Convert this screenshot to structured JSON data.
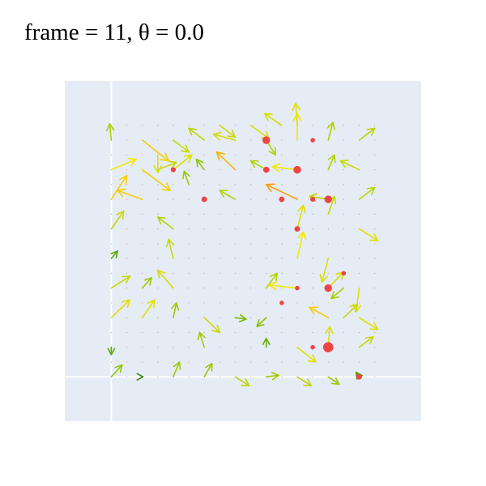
{
  "title": "frame = 11, θ = 0.0",
  "colors": {
    "plot_bg": "#e5ecf6",
    "grid": "#ffffff",
    "dot": "#ef4444",
    "arrow_low": "#2e7d0b",
    "arrow_mid": "#8bc400",
    "arrow_high": "#f2e800",
    "arrow_max": "#ff9a00"
  },
  "chart_data": {
    "type": "quiver",
    "title": "frame = 11, θ = 0.0",
    "xlim": [
      -1.5,
      10.0
    ],
    "ylim": [
      -1.5,
      10.0
    ],
    "grid": true,
    "gridlines": {
      "x": [
        0
      ],
      "y": [
        0
      ]
    },
    "grid_range": {
      "min": 0,
      "max": 8.5,
      "step": 0.5
    },
    "arrows": [
      {
        "x": 0.0,
        "y": 0.0,
        "u": 0.35,
        "v": 0.4,
        "mag": 0.45
      },
      {
        "x": 1.0,
        "y": 0.0,
        "u": 0.02,
        "v": 0.0,
        "mag": 0.05
      },
      {
        "x": 2.0,
        "y": 0.0,
        "u": 0.2,
        "v": 0.5,
        "mag": 0.5
      },
      {
        "x": 3.0,
        "y": 0.0,
        "u": 0.25,
        "v": 0.45,
        "mag": 0.5
      },
      {
        "x": 4.0,
        "y": 0.0,
        "u": 0.45,
        "v": -0.3,
        "mag": 0.65
      },
      {
        "x": 5.0,
        "y": 0.0,
        "u": 0.4,
        "v": 0.05,
        "mag": 0.5
      },
      {
        "x": 6.0,
        "y": 0.0,
        "u": 0.45,
        "v": -0.3,
        "mag": 0.65
      },
      {
        "x": 7.0,
        "y": 0.0,
        "u": 0.35,
        "v": -0.25,
        "mag": 0.5
      },
      {
        "x": 8.0,
        "y": 0.0,
        "u": -0.1,
        "v": 0.15,
        "mag": 0.2
      },
      {
        "x": 0.0,
        "y": 1.0,
        "u": 0.0,
        "v": -0.25,
        "mag": 0.25
      },
      {
        "x": 3.0,
        "y": 1.0,
        "u": -0.15,
        "v": 0.5,
        "mag": 0.5
      },
      {
        "x": 5.0,
        "y": 1.0,
        "u": 0.0,
        "v": 0.3,
        "mag": 0.3
      },
      {
        "x": 6.0,
        "y": 1.0,
        "u": 0.6,
        "v": -0.5,
        "mag": 0.8
      },
      {
        "x": 7.0,
        "y": 1.0,
        "u": 0.05,
        "v": 0.7,
        "mag": 0.8
      },
      {
        "x": 8.0,
        "y": 1.0,
        "u": 0.45,
        "v": 0.35,
        "mag": 0.7
      },
      {
        "x": 0.0,
        "y": 2.0,
        "u": 0.6,
        "v": 0.6,
        "mag": 0.8
      },
      {
        "x": 1.0,
        "y": 2.0,
        "u": 0.4,
        "v": 0.6,
        "mag": 0.8
      },
      {
        "x": 2.0,
        "y": 2.0,
        "u": 0.1,
        "v": 0.5,
        "mag": 0.5
      },
      {
        "x": 3.0,
        "y": 2.0,
        "u": 0.5,
        "v": -0.5,
        "mag": 0.7
      },
      {
        "x": 4.0,
        "y": 2.0,
        "u": 0.35,
        "v": -0.05,
        "mag": 0.35
      },
      {
        "x": 5.0,
        "y": 2.0,
        "u": -0.3,
        "v": -0.3,
        "mag": 0.4
      },
      {
        "x": 7.0,
        "y": 2.0,
        "u": -0.6,
        "v": 0.35,
        "mag": 1.0
      },
      {
        "x": 8.0,
        "y": 2.0,
        "u": 0.6,
        "v": -0.4,
        "mag": 0.8
      },
      {
        "x": 0.0,
        "y": 3.0,
        "u": 0.6,
        "v": 0.4,
        "mag": 0.7
      },
      {
        "x": 1.0,
        "y": 3.0,
        "u": 0.3,
        "v": 0.35,
        "mag": 0.5
      },
      {
        "x": 2.0,
        "y": 3.0,
        "u": -0.5,
        "v": 0.6,
        "mag": 0.75
      },
      {
        "x": 5.0,
        "y": 3.0,
        "u": 0.35,
        "v": 0.5,
        "mag": 0.6
      },
      {
        "x": 6.0,
        "y": 3.0,
        "u": -0.9,
        "v": 0.1,
        "mag": 0.9
      },
      {
        "x": 7.0,
        "y": 3.0,
        "u": 0.5,
        "v": 0.55,
        "mag": 0.75
      },
      {
        "x": 8.0,
        "y": 3.0,
        "u": -0.1,
        "v": -0.8,
        "mag": 0.8
      },
      {
        "x": 0.0,
        "y": 4.0,
        "u": 0.2,
        "v": 0.25,
        "mag": 0.25
      },
      {
        "x": 2.0,
        "y": 4.0,
        "u": -0.15,
        "v": 0.65,
        "mag": 0.7
      },
      {
        "x": 6.0,
        "y": 4.0,
        "u": 0.2,
        "v": 0.9,
        "mag": 0.9
      },
      {
        "x": 7.0,
        "y": 4.0,
        "u": -0.2,
        "v": -0.8,
        "mag": 0.8
      },
      {
        "x": 0.0,
        "y": 5.0,
        "u": 0.4,
        "v": 0.6,
        "mag": 0.7
      },
      {
        "x": 2.0,
        "y": 5.0,
        "u": -0.5,
        "v": 0.4,
        "mag": 0.6
      },
      {
        "x": 6.0,
        "y": 5.0,
        "u": 0.2,
        "v": 0.8,
        "mag": 0.8
      },
      {
        "x": 8.0,
        "y": 5.0,
        "u": 0.6,
        "v": -0.4,
        "mag": 0.8
      },
      {
        "x": 0.0,
        "y": 6.0,
        "u": 0.5,
        "v": 0.8,
        "mag": 1.0
      },
      {
        "x": 1.0,
        "y": 6.0,
        "u": -0.8,
        "v": 0.3,
        "mag": 1.0
      },
      {
        "x": 4.0,
        "y": 6.0,
        "u": -0.5,
        "v": 0.3,
        "mag": 0.6
      },
      {
        "x": 6.0,
        "y": 6.0,
        "u": -1.0,
        "v": 0.5,
        "mag": 1.2
      },
      {
        "x": 7.0,
        "y": 6.0,
        "u": -0.6,
        "v": 0.1,
        "mag": 0.65
      },
      {
        "x": 8.0,
        "y": 6.0,
        "u": 0.5,
        "v": 0.4,
        "mag": 0.65
      },
      {
        "x": 0.0,
        "y": 7.0,
        "u": 0.8,
        "v": 0.35,
        "mag": 0.9
      },
      {
        "x": 1.0,
        "y": 7.0,
        "u": 0.9,
        "v": -0.7,
        "mag": 1.0
      },
      {
        "x": 2.0,
        "y": 7.0,
        "u": 0.6,
        "v": 0.5,
        "mag": 0.8
      },
      {
        "x": 3.0,
        "y": 7.0,
        "u": -0.25,
        "v": 0.35,
        "mag": 0.45
      },
      {
        "x": 4.0,
        "y": 7.0,
        "u": -0.6,
        "v": 0.6,
        "mag": 1.1
      },
      {
        "x": 5.0,
        "y": 7.0,
        "u": -0.5,
        "v": 0.3,
        "mag": 0.6
      },
      {
        "x": 6.0,
        "y": 7.0,
        "u": -0.8,
        "v": 0.1,
        "mag": 0.9
      },
      {
        "x": 7.0,
        "y": 7.0,
        "u": 0.2,
        "v": 0.5,
        "mag": 0.6
      },
      {
        "x": 8.0,
        "y": 7.0,
        "u": -0.6,
        "v": 0.3,
        "mag": 0.7
      },
      {
        "x": 0.0,
        "y": 8.0,
        "u": -0.05,
        "v": 0.55,
        "mag": 0.55
      },
      {
        "x": 1.0,
        "y": 8.0,
        "u": 0.85,
        "v": -0.7,
        "mag": 1.0
      },
      {
        "x": 2.0,
        "y": 8.0,
        "u": 0.5,
        "v": -0.4,
        "mag": 0.7
      },
      {
        "x": 3.0,
        "y": 8.0,
        "u": -0.5,
        "v": 0.4,
        "mag": 0.65
      },
      {
        "x": 4.0,
        "y": 8.0,
        "u": -0.7,
        "v": 0.2,
        "mag": 0.75
      },
      {
        "x": 5.0,
        "y": 8.0,
        "u": 0.3,
        "v": -0.5,
        "mag": 0.6
      },
      {
        "x": 6.0,
        "y": 8.0,
        "u": 0.0,
        "v": 0.9,
        "mag": 0.9
      },
      {
        "x": 7.0,
        "y": 8.0,
        "u": 0.15,
        "v": 0.6,
        "mag": 0.6
      },
      {
        "x": 8.0,
        "y": 8.0,
        "u": 0.5,
        "v": 0.4,
        "mag": 0.65
      },
      {
        "x": 1.5,
        "y": 7.5,
        "u": 0.0,
        "v": -0.6,
        "mag": 0.8
      },
      {
        "x": 4.5,
        "y": 8.5,
        "u": 0.6,
        "v": -0.45,
        "mag": 0.75
      },
      {
        "x": 5.5,
        "y": 8.5,
        "u": -0.55,
        "v": 0.4,
        "mag": 0.75
      },
      {
        "x": 6.0,
        "y": 8.5,
        "u": -0.05,
        "v": 0.75,
        "mag": 0.8
      },
      {
        "x": 3.5,
        "y": 8.5,
        "u": 0.5,
        "v": -0.4,
        "mag": 0.7
      },
      {
        "x": 1.5,
        "y": 7.0,
        "u": 0.6,
        "v": 0.25,
        "mag": 0.7
      },
      {
        "x": 2.5,
        "y": 6.5,
        "u": -0.15,
        "v": 0.45,
        "mag": 0.5
      },
      {
        "x": 7.5,
        "y": 2.0,
        "u": 0.45,
        "v": 0.45,
        "mag": 0.7
      },
      {
        "x": 7.5,
        "y": 3.0,
        "u": -0.4,
        "v": -0.35,
        "mag": 0.55
      },
      {
        "x": 7.0,
        "y": 5.5,
        "u": 0.2,
        "v": 0.6,
        "mag": 0.7
      }
    ],
    "dots": [
      {
        "x": 5.0,
        "y": 8.0,
        "r": 1.0
      },
      {
        "x": 5.0,
        "y": 7.0,
        "r": 0.7
      },
      {
        "x": 6.0,
        "y": 7.0,
        "r": 1.0
      },
      {
        "x": 7.0,
        "y": 6.0,
        "r": 1.0
      },
      {
        "x": 5.5,
        "y": 6.0,
        "r": 0.6
      },
      {
        "x": 6.5,
        "y": 6.0,
        "r": 0.5
      },
      {
        "x": 3.0,
        "y": 6.0,
        "r": 0.6
      },
      {
        "x": 2.0,
        "y": 7.0,
        "r": 0.5
      },
      {
        "x": 6.0,
        "y": 5.0,
        "r": 0.6
      },
      {
        "x": 7.0,
        "y": 3.0,
        "r": 1.0
      },
      {
        "x": 7.5,
        "y": 3.5,
        "r": 0.4
      },
      {
        "x": 5.5,
        "y": 2.5,
        "r": 0.4
      },
      {
        "x": 6.0,
        "y": 3.0,
        "r": 0.4
      },
      {
        "x": 7.0,
        "y": 1.0,
        "r": 1.5
      },
      {
        "x": 8.0,
        "y": 0.0,
        "r": 0.6
      },
      {
        "x": 6.5,
        "y": 1.0,
        "r": 0.4
      },
      {
        "x": 6.5,
        "y": 8.0,
        "r": 0.4
      }
    ]
  }
}
